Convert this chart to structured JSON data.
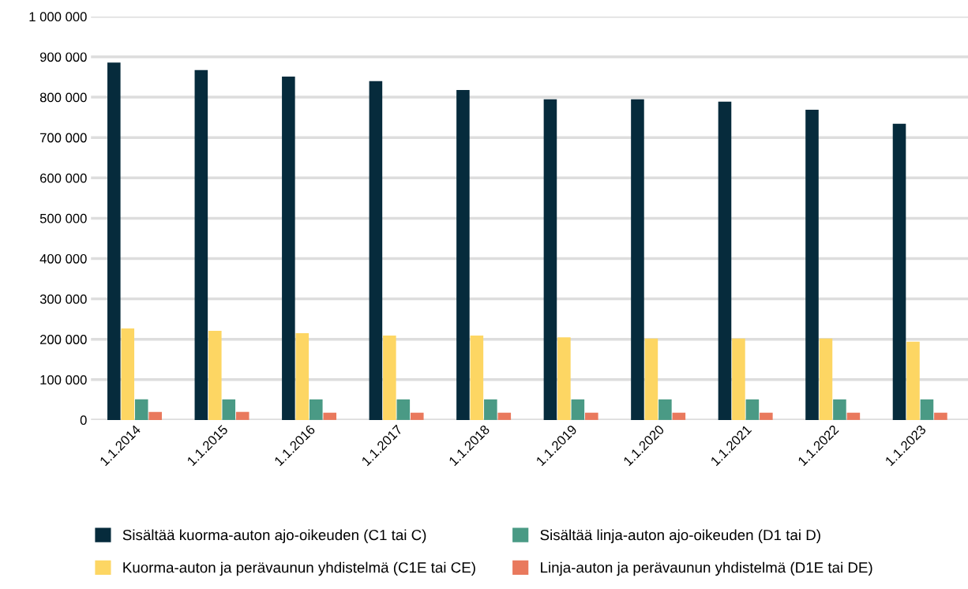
{
  "chart_data": {
    "type": "bar",
    "categories": [
      "1.1.2014",
      "1.1.2015",
      "1.1.2016",
      "1.1.2017",
      "1.1.2018",
      "1.1.2019",
      "1.1.2020",
      "1.1.2021",
      "1.1.2022",
      "1.1.2023"
    ],
    "series": [
      {
        "name": "Sisältää kuorma-auton ajo-oikeuden (C1 tai C)",
        "color": "#062b3c",
        "values": [
          886000,
          867000,
          851000,
          840000,
          818000,
          795000,
          795000,
          789000,
          769000,
          734000
        ]
      },
      {
        "name": "Kuorma-auton ja perävaunun yhdistelmä (C1E tai CE)",
        "color": "#fdd663",
        "values": [
          227000,
          221000,
          215000,
          209000,
          209000,
          205000,
          202000,
          202000,
          202000,
          194000
        ]
      },
      {
        "name": "Sisältää linja-auton ajo-oikeuden (D1 tai D)",
        "color": "#4a9a85",
        "values": [
          51000,
          51000,
          51000,
          51000,
          51000,
          51000,
          51000,
          51000,
          51000,
          51000
        ]
      },
      {
        "name": "Linja-auton ja perävaunun yhdistelmä (D1E tai DE)",
        "color": "#e9795d",
        "values": [
          20000,
          20000,
          18000,
          18000,
          18000,
          18000,
          18000,
          18000,
          18000,
          18000
        ]
      }
    ],
    "ylim": [
      0,
      1000000
    ],
    "yticks": [
      {
        "value": 0,
        "label": "0"
      },
      {
        "value": 100000,
        "label": "100 000"
      },
      {
        "value": 200000,
        "label": "200 000"
      },
      {
        "value": 300000,
        "label": "300 000"
      },
      {
        "value": 400000,
        "label": "400 000"
      },
      {
        "value": 500000,
        "label": "500 000"
      },
      {
        "value": 600000,
        "label": "600 000"
      },
      {
        "value": 700000,
        "label": "700 000"
      },
      {
        "value": 800000,
        "label": "800 000"
      },
      {
        "value": 900000,
        "label": "900 000"
      },
      {
        "value": 1000000,
        "label": "1 000 000"
      }
    ],
    "grid": "y",
    "legend": "bottom"
  }
}
